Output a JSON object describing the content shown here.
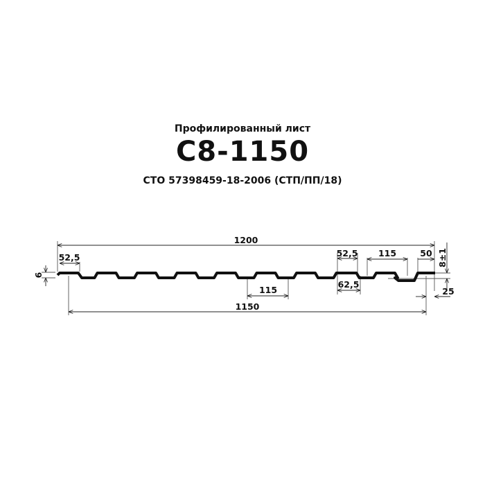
{
  "header": {
    "subtitle": "Профилированный лист",
    "title": "С8-1150",
    "standard": "СТО 57398459-18-2006 (СТП/ПП/18)"
  },
  "dimensions": {
    "total_width": "1200",
    "useful_width": "1150",
    "rib_top_left": "52,5",
    "rib_top_right": "52,5",
    "rib_bottom": "62,5",
    "pitch_bottom": "115",
    "pitch_top": "115",
    "edge": "50",
    "height": "8±1",
    "thickness_left": "6",
    "overlap": "25"
  }
}
